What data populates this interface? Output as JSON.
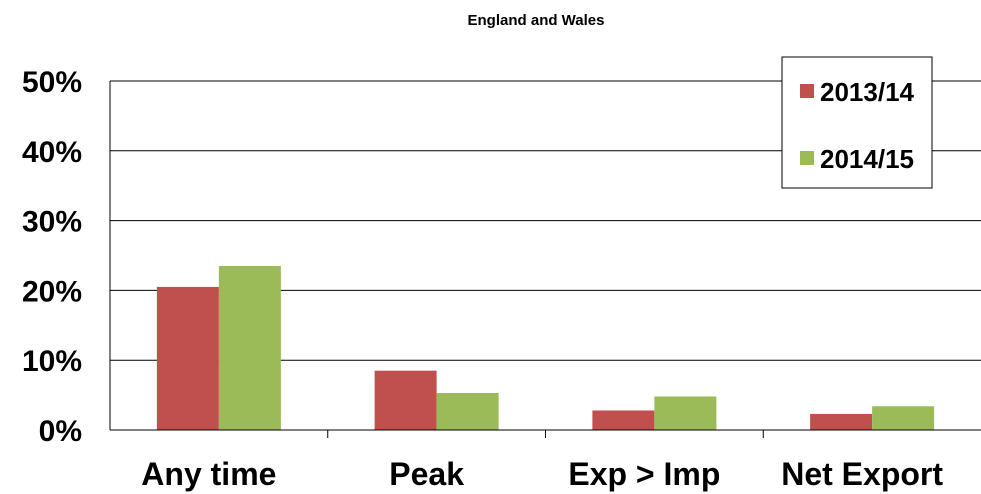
{
  "chart_data": {
    "type": "bar",
    "title": "England and Wales",
    "xlabel": "",
    "ylabel": "",
    "categories": [
      "Any time",
      "Peak",
      "Exp > Imp",
      "Net Export"
    ],
    "series": [
      {
        "name": "2013/14",
        "color": "#c0504d",
        "values": [
          20.5,
          8.5,
          2.8,
          2.3
        ]
      },
      {
        "name": "2014/15",
        "color": "#9bbb59",
        "values": [
          23.5,
          5.3,
          4.8,
          3.4
        ]
      }
    ],
    "ylim": [
      0,
      50
    ],
    "yticks": [
      0,
      10,
      20,
      30,
      40,
      50
    ],
    "ytick_labels": [
      "0%",
      "10%",
      "20%",
      "30%",
      "40%",
      "50%"
    ],
    "grid": true,
    "legend_position": "top-right"
  }
}
